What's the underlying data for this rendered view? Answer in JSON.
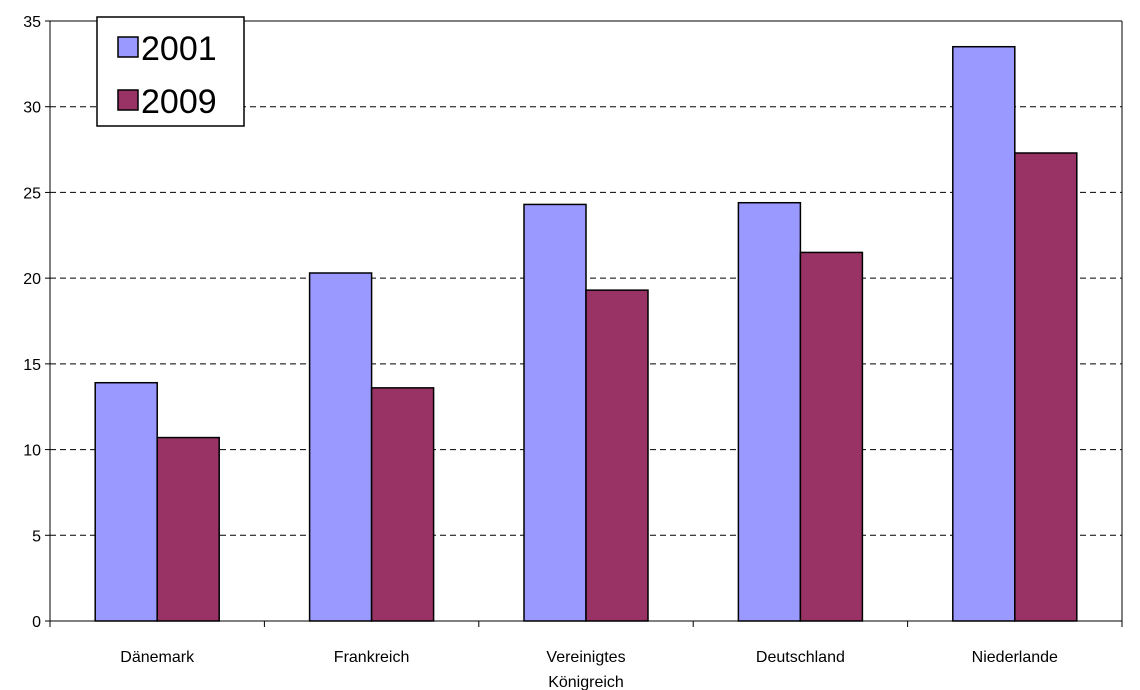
{
  "chart_data": {
    "type": "bar",
    "categories": [
      "Dänemark",
      "Frankreich",
      "Vereinigtes Königreich",
      "Deutschland",
      "Niederlande"
    ],
    "category_label_lines": [
      [
        "Dänemark"
      ],
      [
        "Frankreich"
      ],
      [
        "Vereinigtes",
        "Königreich"
      ],
      [
        "Deutschland"
      ],
      [
        "Niederlande"
      ]
    ],
    "series": [
      {
        "name": "2001",
        "values": [
          13.9,
          20.3,
          24.3,
          24.4,
          33.5
        ],
        "color": "#9999ff"
      },
      {
        "name": "2009",
        "values": [
          10.7,
          13.6,
          19.3,
          21.5,
          27.3
        ],
        "color": "#993366"
      }
    ],
    "title": "",
    "xlabel": "",
    "ylabel": "",
    "ylim": [
      0,
      35
    ],
    "yticks": [
      0,
      5,
      10,
      15,
      20,
      25,
      30,
      35
    ],
    "grid": "horizontal dashed",
    "legend_position": "top-left"
  }
}
